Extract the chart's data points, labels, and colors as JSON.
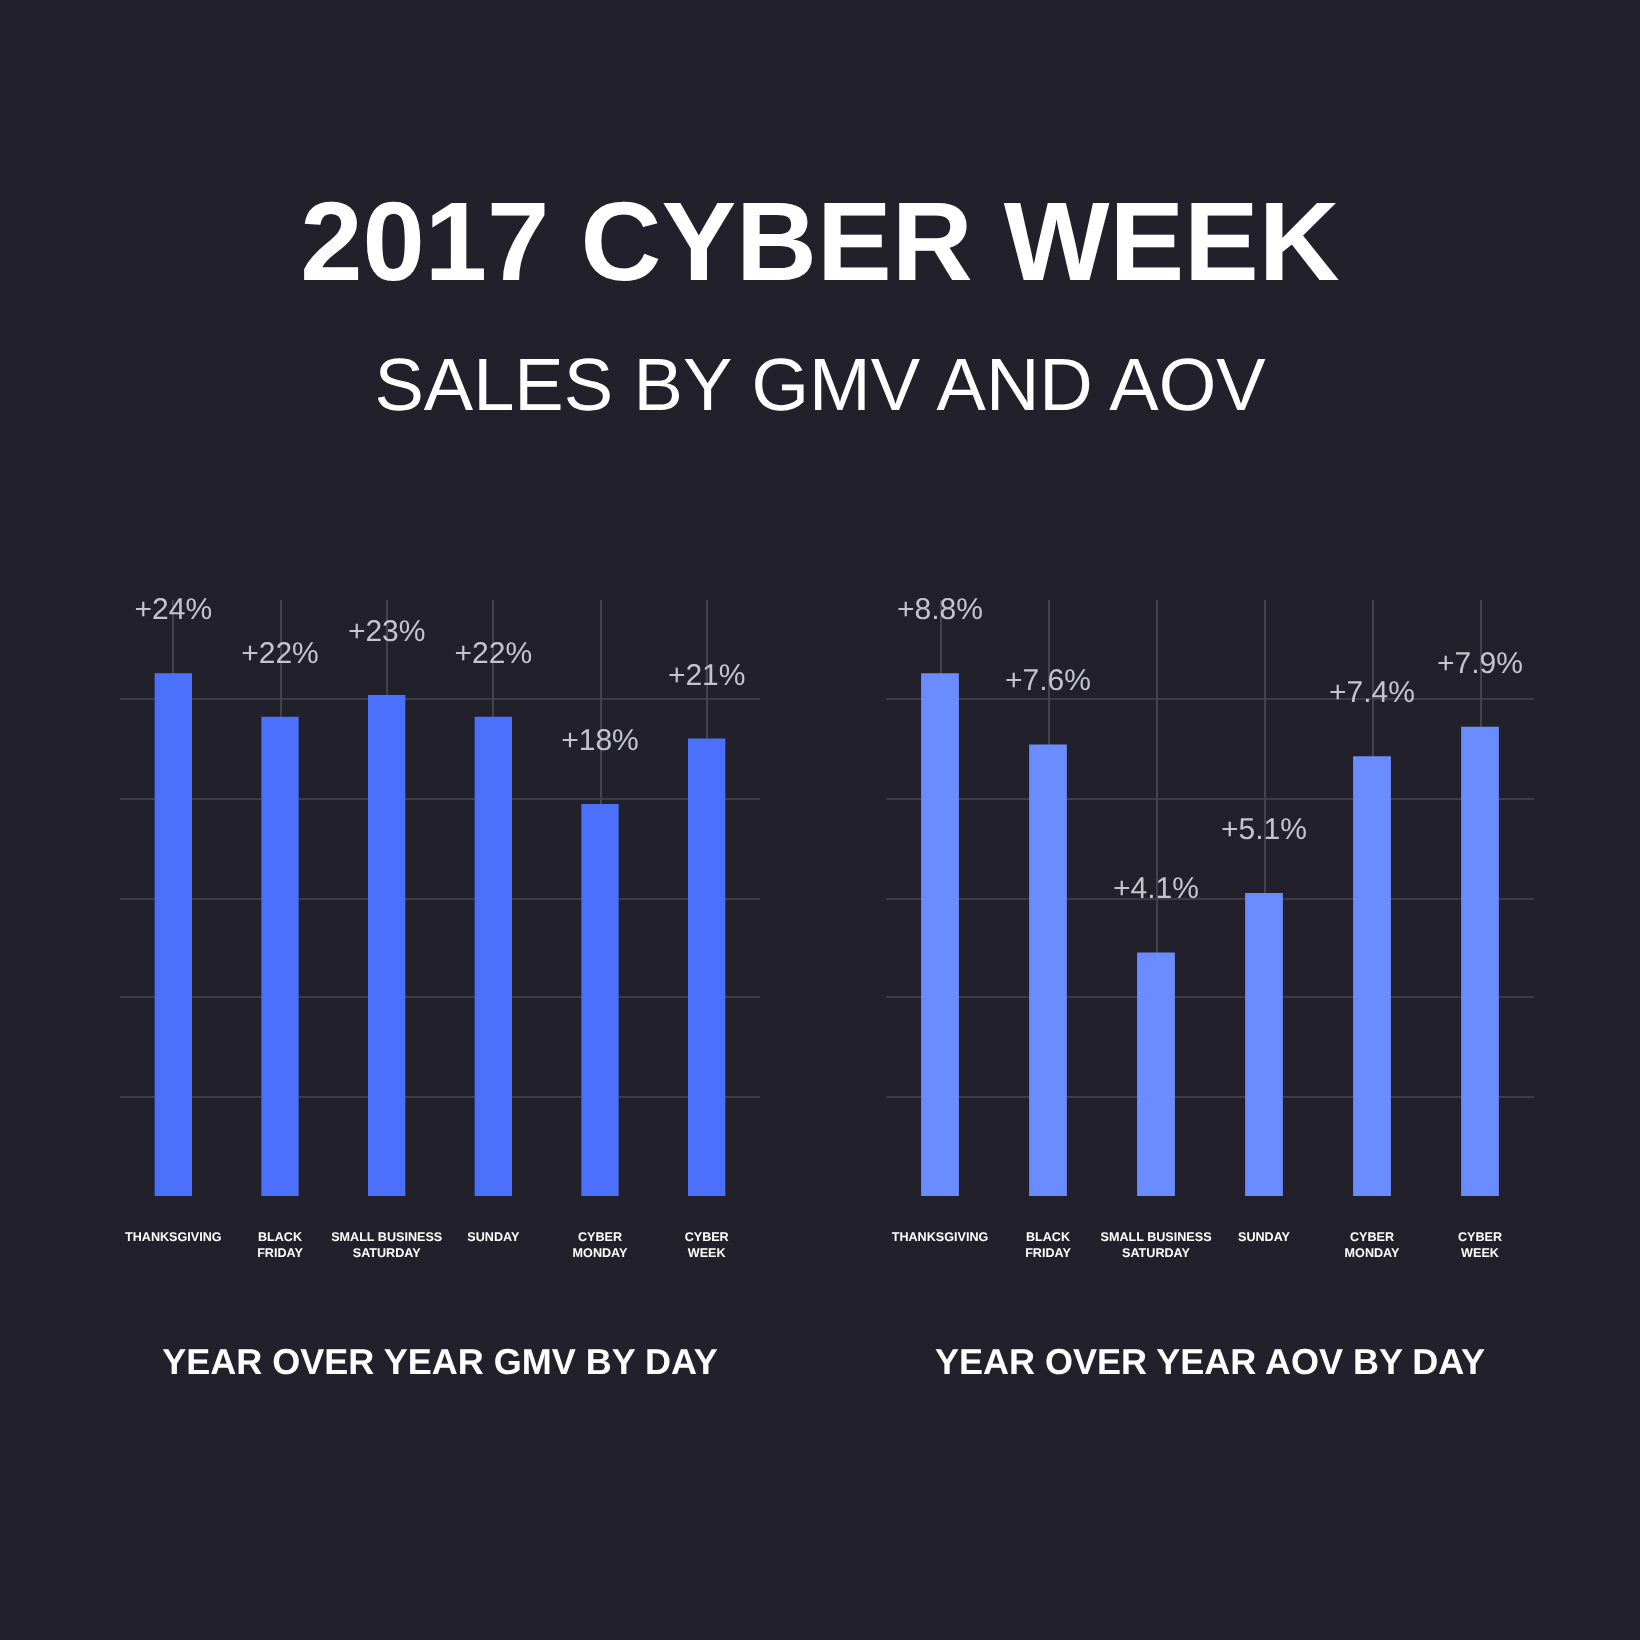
{
  "chart_data": [
    {
      "type": "bar",
      "title": "2017 CYBER WEEK",
      "subtitle": "SALES BY GMV AND AOV",
      "xlabel": "YEAR OVER YEAR GMV BY DAY",
      "categories": [
        "THANKSGIVING",
        "BLACK\nFRIDAY",
        "SMALL BUSINESS\nSATURDAY",
        "SUNDAY",
        "CYBER\nMONDAY",
        "CYBER\nWEEK"
      ],
      "values": [
        24,
        22,
        23,
        22,
        18,
        21
      ],
      "value_labels": [
        "+24%",
        "+22%",
        "+23%",
        "+22%",
        "+18%",
        "+21%"
      ],
      "color": "#4b70fb",
      "grid": true,
      "tick_labels": "x"
    },
    {
      "type": "bar",
      "xlabel": "YEAR OVER YEAR AOV BY DAY",
      "categories": [
        "THANKSGIVING",
        "BLACK\nFRIDAY",
        "SMALL BUSINESS\nSATURDAY",
        "SUNDAY",
        "CYBER\nMONDAY",
        "CYBER\nWEEK"
      ],
      "values": [
        8.8,
        7.6,
        4.1,
        5.1,
        7.4,
        7.9
      ],
      "value_labels": [
        "+8.8%",
        "+7.6%",
        "+4.1%",
        "+5.1%",
        "+7.4%",
        "+7.9%"
      ],
      "color": "#6b8cff",
      "grid": true,
      "tick_labels": "x"
    }
  ]
}
